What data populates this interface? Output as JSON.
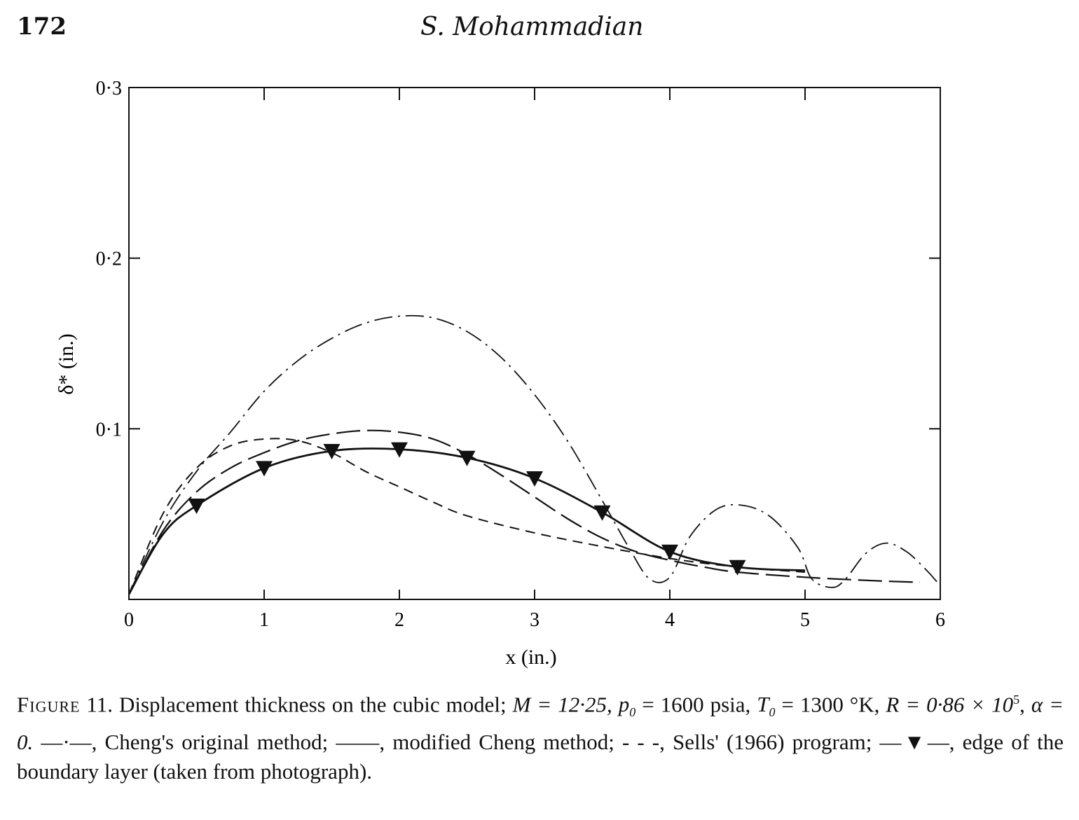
{
  "page": {
    "number": "172",
    "running_head": "S. Mohammadian"
  },
  "caption": {
    "label": "Figure",
    "number": "11.",
    "text": "Displacement thickness on the cubic model; M = 12·25, p0 = 1600 psia, T0 = 1300 °K, R = 0·86 × 10^5, α = 0. —·—, Cheng's original method; ——, modified Cheng method; - - -, Sells' (1966) program; —▼—, edge of the boundary layer (taken from photograph).",
    "params_line1": "Displacement thickness on the cubic model;",
    "params_M": "M = 12·25,",
    "params_p0": "= 1600 psia,",
    "params_T0": "= 1300 °K,",
    "params_R": "R = 0·86 × 10",
    "params_R_exp": "5",
    "params_alpha": "α = 0.",
    "legend_cheng_original": "Cheng's original method;",
    "legend_modified": "modified",
    "legend_modified2": "Cheng method;",
    "legend_sells": "Sells' (1966) program;",
    "legend_edge": "edge of the boundary layer (taken from photograph)."
  },
  "chart_data": {
    "type": "line",
    "xlabel": "x (in.)",
    "ylabel": "δ* (in.)",
    "xlim": [
      0,
      6
    ],
    "ylim": [
      0,
      0.3
    ],
    "x_ticks": [
      "0",
      "1",
      "2",
      "3",
      "4",
      "5",
      "6"
    ],
    "y_ticks": [
      "0·1",
      "0·2",
      "0·3"
    ],
    "series": [
      {
        "name": "Cheng's original method",
        "style": "dash-dot",
        "points": [
          [
            0,
            0.003
          ],
          [
            0.25,
            0.045
          ],
          [
            0.5,
            0.075
          ],
          [
            0.75,
            0.098
          ],
          [
            1,
            0.122
          ],
          [
            1.25,
            0.14
          ],
          [
            1.5,
            0.153
          ],
          [
            1.75,
            0.162
          ],
          [
            2,
            0.166
          ],
          [
            2.25,
            0.165
          ],
          [
            2.5,
            0.157
          ],
          [
            2.75,
            0.142
          ],
          [
            3,
            0.12
          ],
          [
            3.25,
            0.092
          ],
          [
            3.5,
            0.058
          ],
          [
            3.7,
            0.03
          ],
          [
            3.85,
            0.012
          ],
          [
            4.0,
            0.013
          ],
          [
            4.15,
            0.037
          ],
          [
            4.35,
            0.053
          ],
          [
            4.55,
            0.055
          ],
          [
            4.75,
            0.048
          ],
          [
            4.95,
            0.03
          ],
          [
            5.05,
            0.012
          ],
          [
            5.2,
            0.007
          ],
          [
            5.3,
            0.012
          ],
          [
            5.45,
            0.027
          ],
          [
            5.6,
            0.033
          ],
          [
            5.75,
            0.028
          ],
          [
            5.9,
            0.017
          ],
          [
            6,
            0.008
          ]
        ]
      },
      {
        "name": "modified Cheng method",
        "style": "long-dash",
        "points": [
          [
            0,
            0.003
          ],
          [
            0.25,
            0.04
          ],
          [
            0.5,
            0.063
          ],
          [
            0.75,
            0.077
          ],
          [
            1,
            0.086
          ],
          [
            1.25,
            0.093
          ],
          [
            1.5,
            0.097
          ],
          [
            1.75,
            0.099
          ],
          [
            2,
            0.098
          ],
          [
            2.25,
            0.094
          ],
          [
            2.5,
            0.085
          ],
          [
            2.75,
            0.073
          ],
          [
            3,
            0.06
          ],
          [
            3.25,
            0.047
          ],
          [
            3.5,
            0.036
          ],
          [
            3.75,
            0.028
          ],
          [
            4,
            0.023
          ],
          [
            4.25,
            0.019
          ],
          [
            4.5,
            0.016
          ],
          [
            5,
            0.013
          ],
          [
            5.5,
            0.011
          ],
          [
            5.85,
            0.01
          ]
        ]
      },
      {
        "name": "Sells' (1966) program",
        "style": "short-dash",
        "points": [
          [
            0,
            0.003
          ],
          [
            0.25,
            0.05
          ],
          [
            0.5,
            0.077
          ],
          [
            0.75,
            0.09
          ],
          [
            1,
            0.094
          ],
          [
            1.25,
            0.093
          ],
          [
            1.5,
            0.086
          ],
          [
            1.75,
            0.075
          ],
          [
            2,
            0.066
          ],
          [
            2.25,
            0.057
          ],
          [
            2.5,
            0.049
          ],
          [
            3,
            0.039
          ],
          [
            3.5,
            0.031
          ],
          [
            4,
            0.024
          ],
          [
            4.5,
            0.019
          ],
          [
            5,
            0.016
          ]
        ]
      },
      {
        "name": "edge of the boundary layer (taken from photograph)",
        "style": "solid-markers",
        "points": [
          [
            0,
            0.003
          ],
          [
            0.25,
            0.038
          ],
          [
            0.5,
            0.055
          ],
          [
            1,
            0.077
          ],
          [
            1.5,
            0.087
          ],
          [
            2,
            0.088
          ],
          [
            2.5,
            0.083
          ],
          [
            3,
            0.071
          ],
          [
            3.5,
            0.051
          ],
          [
            4,
            0.028
          ],
          [
            4.5,
            0.019
          ],
          [
            5,
            0.017
          ]
        ],
        "markers_x": [
          0.5,
          1,
          1.5,
          2,
          2.5,
          3,
          3.5,
          4,
          4.5
        ]
      }
    ]
  }
}
